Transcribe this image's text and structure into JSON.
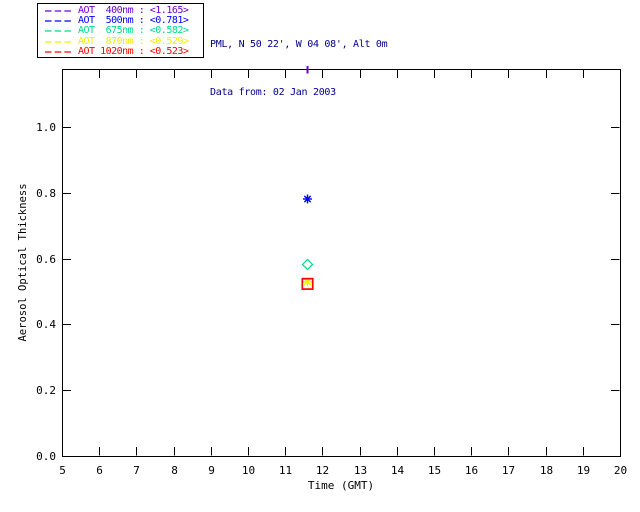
{
  "window": {
    "background": "#FFFFFF"
  },
  "header": {
    "site_line": "PML, N 50 22', W 04 08', Alt 0m",
    "date_line": "Data from: 02 Jan 2003",
    "color": "#00008B"
  },
  "legend": {
    "border_color": "#000000",
    "entries": [
      {
        "wavelength": "400nm",
        "label": "AOT  400nm : <1.165>",
        "mean_aot": "1.165",
        "color": "#6E00D4"
      },
      {
        "wavelength": "500nm",
        "label": "AOT  500nm : <0.781>",
        "mean_aot": "0.781",
        "color": "#0000FF"
      },
      {
        "wavelength": "675nm",
        "label": "AOT  675nm : <0.582>",
        "mean_aot": "0.582",
        "color": "#00DC87"
      },
      {
        "wavelength": "870nm",
        "label": "AOT  870nm : <0.529>",
        "mean_aot": "0.529",
        "color": "#F0F000"
      },
      {
        "wavelength": "1020nm",
        "label": "AOT 1020nm : <0.523>",
        "mean_aot": "0.523",
        "color": "#FF0000"
      }
    ]
  },
  "chart_data": {
    "type": "scatter",
    "title": "",
    "xlabel": "Time (GMT)",
    "ylabel": "Aerosol Optical Thickness",
    "xlim": [
      5,
      20
    ],
    "ylim": [
      0,
      1.176
    ],
    "xticks": [
      5,
      6,
      7,
      8,
      9,
      10,
      11,
      12,
      13,
      14,
      15,
      16,
      17,
      18,
      19,
      20
    ],
    "yticks": [
      "0.0",
      "0.2",
      "0.4",
      "0.6",
      "0.8",
      "1.0"
    ],
    "grid": false,
    "axis_color": "#000000",
    "legend_position": "outside-top-left",
    "series": [
      {
        "name": "AOT 400nm",
        "color": "#6E00D4",
        "marker": "asterisk",
        "clipped_at_top": true,
        "points": [
          {
            "x": 11.6,
            "y": 1.165
          }
        ]
      },
      {
        "name": "AOT 500nm",
        "color": "#0000FF",
        "marker": "asterisk",
        "points": [
          {
            "x": 11.6,
            "y": 0.781
          }
        ]
      },
      {
        "name": "AOT 675nm",
        "color": "#00DC87",
        "marker": "diamond",
        "points": [
          {
            "x": 11.6,
            "y": 0.582
          }
        ]
      },
      {
        "name": "AOT 870nm",
        "color": "#F0F000",
        "marker": "asterisk",
        "points": [
          {
            "x": 11.6,
            "y": 0.529
          }
        ]
      },
      {
        "name": "AOT 1020nm",
        "color": "#FF0000",
        "marker": "square",
        "points": [
          {
            "x": 11.6,
            "y": 0.523
          }
        ]
      }
    ]
  }
}
